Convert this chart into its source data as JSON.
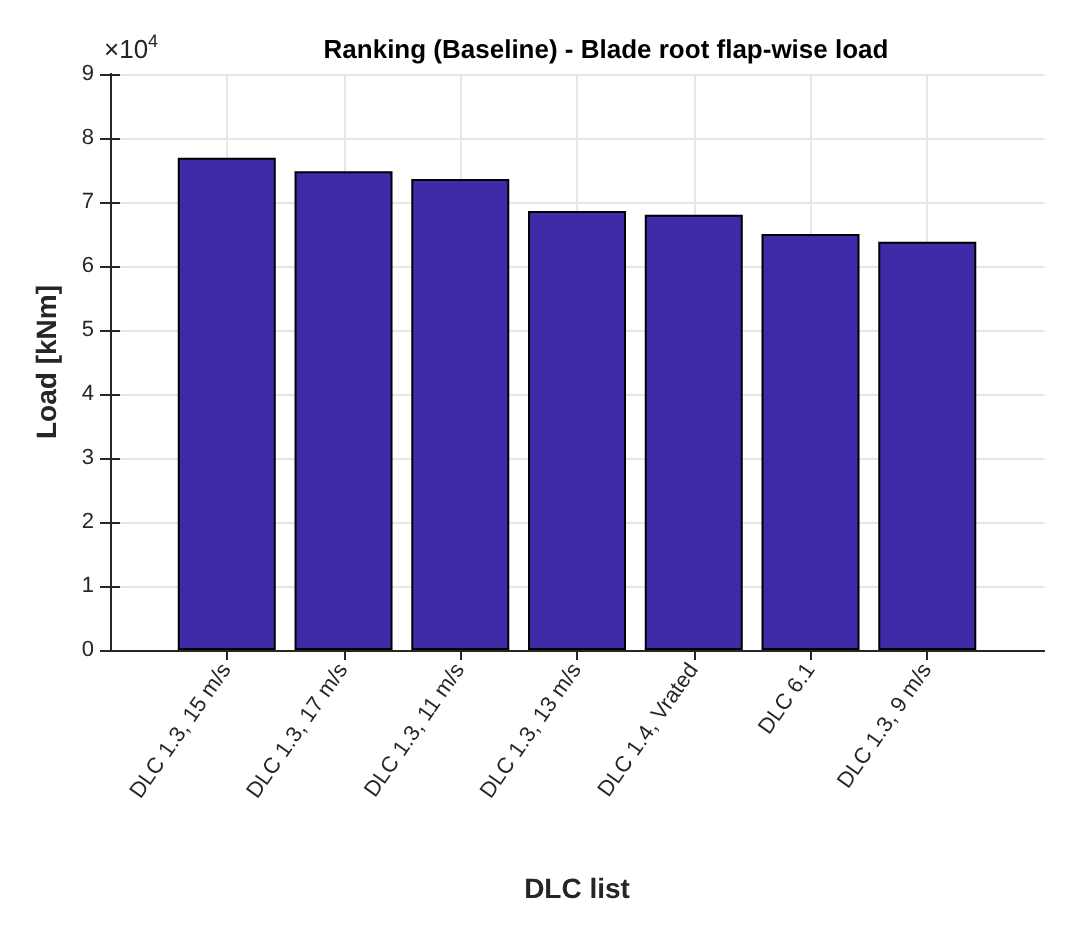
{
  "chart_data": {
    "type": "bar",
    "title": "Ranking (Baseline) - Blade root flap-wise load",
    "xlabel": "DLC list",
    "ylabel": "Load [kNm]",
    "annotations": [
      "×10$^{4}$"
    ],
    "categories": [
      "DLC 1.3, 15 m/s",
      "DLC 1.3, 17 m/s",
      "DLC 1.3, 11 m/s",
      "DLC 1.3, 13 m/s",
      "DLC 1.4, Vrated",
      "DLC 6.1",
      "DLC 1.3, 9 m/s"
    ],
    "values": [
      7.69,
      7.48,
      7.36,
      6.86,
      6.8,
      6.5,
      6.38
    ],
    "color": "#3f2aa8",
    "ylim": [
      0,
      9
    ],
    "yticks": [
      0,
      1,
      2,
      3,
      4,
      5,
      6,
      7,
      8,
      9
    ],
    "grid": true
  }
}
